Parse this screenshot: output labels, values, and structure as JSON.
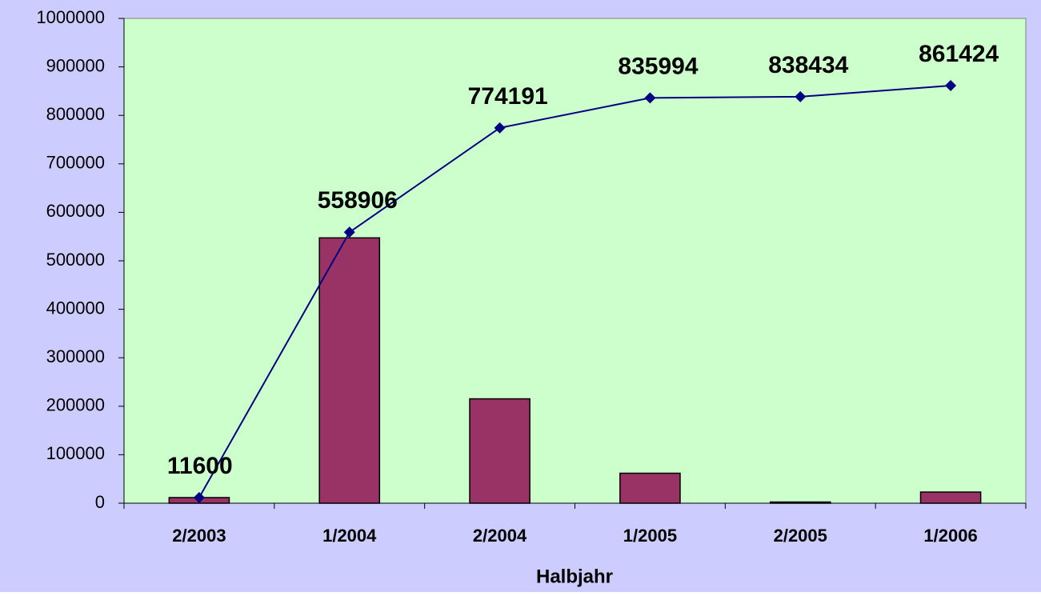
{
  "chart_data": {
    "type": "bar",
    "x_label": "Halbjahr",
    "categories": [
      "2/2003",
      "1/2004",
      "2/2004",
      "1/2005",
      "2/2005",
      "1/2006"
    ],
    "series": [
      {
        "type": "bar",
        "color": "#993366",
        "values": [
          11600,
          547306,
          215285,
          61803,
          2440,
          22990
        ]
      },
      {
        "type": "line",
        "color": "#000080",
        "values": [
          11600,
          558906,
          774191,
          835994,
          838434,
          861424
        ],
        "data_labels": true
      }
    ],
    "ylim": [
      0,
      1000000
    ],
    "yticks": [
      0,
      100000,
      200000,
      300000,
      400000,
      500000,
      600000,
      700000,
      800000,
      900000,
      1000000
    ],
    "background": "#ccccff",
    "plot_background": "#ccffcc"
  }
}
